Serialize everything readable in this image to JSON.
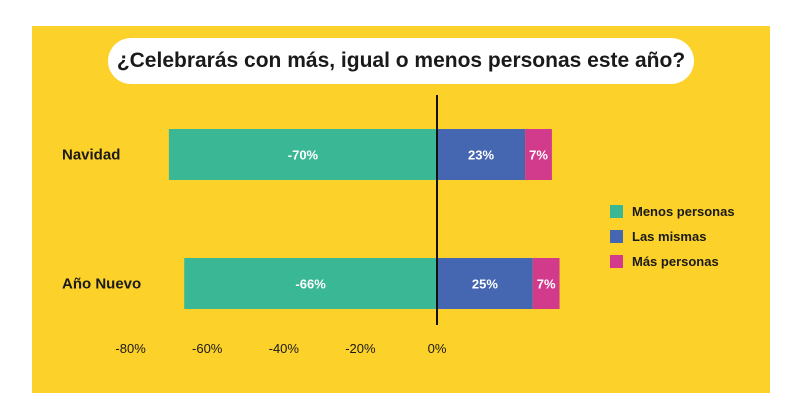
{
  "chart_data": {
    "type": "bar",
    "orientation": "horizontal",
    "stacked": true,
    "title": "¿Celebrarás con más, igual o menos personas este año?",
    "categories": [
      "Navidad",
      "Año Nuevo"
    ],
    "series": [
      {
        "name": "Menos personas",
        "values": [
          -70,
          -66
        ],
        "labels": [
          "-70%",
          "-66%"
        ],
        "color": "#3AB795"
      },
      {
        "name": "Las mismas",
        "values": [
          23,
          25
        ],
        "labels": [
          "23%",
          "25%"
        ],
        "color": "#4566B1"
      },
      {
        "name": "Más personas",
        "values": [
          7,
          7
        ],
        "labels": [
          "7%",
          "7%"
        ],
        "color": "#D23A8C"
      }
    ],
    "xlim": [
      -80,
      30
    ],
    "x_ticks": [
      -80,
      -60,
      -40,
      -20,
      0
    ],
    "x_tick_labels": [
      "-80%",
      "-60%",
      "-40%",
      "-20%",
      "0%"
    ],
    "legend": "right",
    "grid": false,
    "colors": {
      "background": "#FCD12A",
      "title_pill": "#FFFFFF",
      "zero_line": "#111111"
    }
  }
}
